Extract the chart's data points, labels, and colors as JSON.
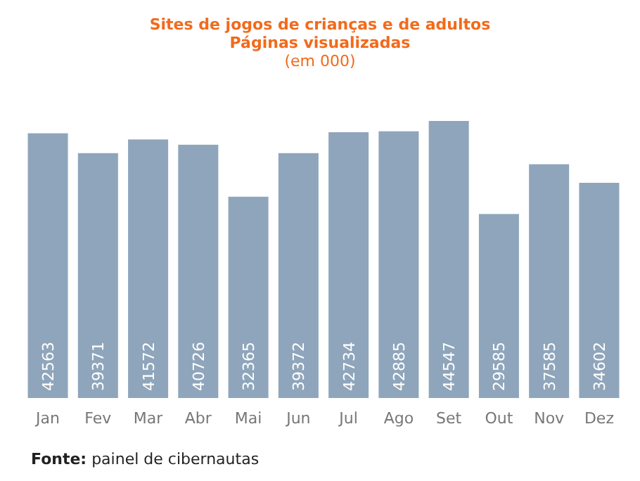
{
  "chart_data": {
    "type": "bar",
    "title": "Sites de jogos de crianças e de adultos\nPáginas visualizadas",
    "subtitle": "(em 000)",
    "categories": [
      "Jan",
      "Fev",
      "Mar",
      "Abr",
      "Mai",
      "Jun",
      "Jul",
      "Ago",
      "Set",
      "Out",
      "Nov",
      "Dez"
    ],
    "values": [
      42563,
      39371,
      41572,
      40726,
      32365,
      39372,
      42734,
      42885,
      44547,
      29585,
      37585,
      34602
    ],
    "color": "#8fa5bb",
    "data_labels": true,
    "grid": false,
    "annotations": [
      "Fonte: painel de cibernautas"
    ]
  }
}
